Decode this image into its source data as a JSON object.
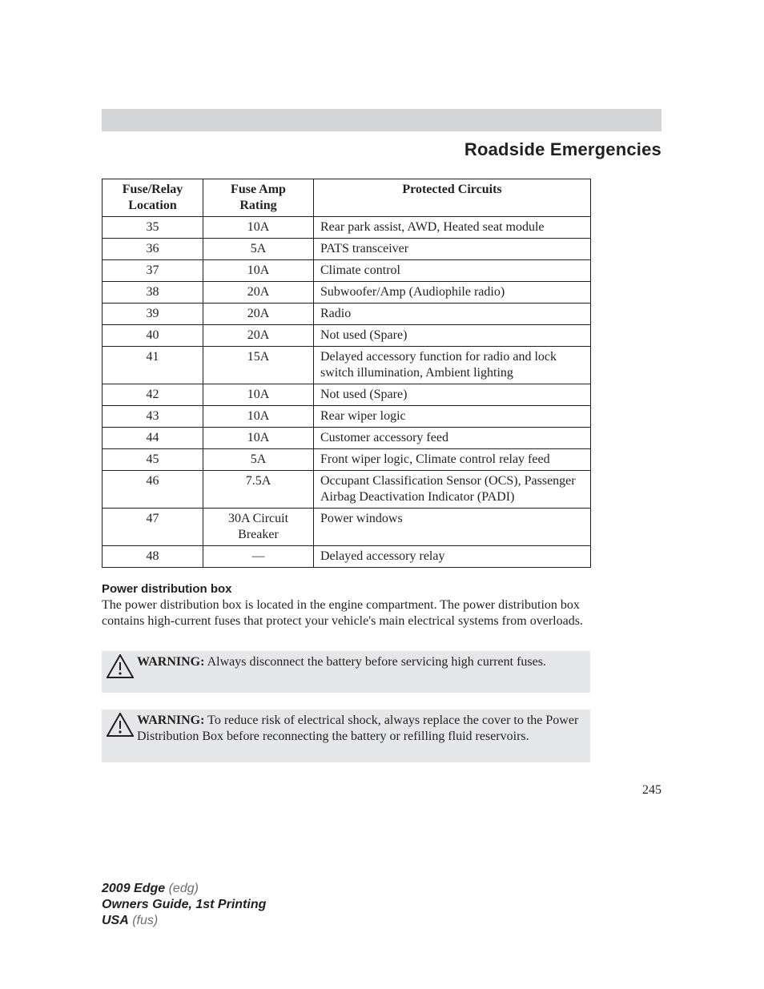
{
  "header": {
    "section_title": "Roadside Emergencies"
  },
  "table": {
    "columns": [
      "Fuse/Relay\nLocation",
      "Fuse Amp\nRating",
      "Protected Circuits"
    ],
    "rows": [
      [
        "35",
        "10A",
        "Rear park assist, AWD, Heated seat module"
      ],
      [
        "36",
        "5A",
        "PATS transceiver"
      ],
      [
        "37",
        "10A",
        "Climate control"
      ],
      [
        "38",
        "20A",
        "Subwoofer/Amp (Audiophile radio)"
      ],
      [
        "39",
        "20A",
        "Radio"
      ],
      [
        "40",
        "20A",
        "Not used (Spare)"
      ],
      [
        "41",
        "15A",
        "Delayed accessory function for radio and lock switch illumination, Ambient lighting"
      ],
      [
        "42",
        "10A",
        "Not used (Spare)"
      ],
      [
        "43",
        "10A",
        "Rear wiper logic"
      ],
      [
        "44",
        "10A",
        "Customer accessory feed"
      ],
      [
        "45",
        "5A",
        "Front wiper logic, Climate control relay feed"
      ],
      [
        "46",
        "7.5A",
        "Occupant Classification Sensor (OCS), Passenger Airbag Deactivation Indicator (PADI)"
      ],
      [
        "47",
        "30A Circuit Breaker",
        "Power windows"
      ],
      [
        "48",
        "—",
        "Delayed accessory relay"
      ]
    ]
  },
  "body": {
    "subheading": "Power distribution box",
    "paragraph": "The power distribution box is located in the engine compartment. The power distribution box contains high-current fuses that protect your vehicle's main electrical systems from overloads.",
    "warning1_label": "WARNING:",
    "warning1_text": " Always disconnect the battery before servicing high current fuses.",
    "warning2_label": "WARNING:",
    "warning2_text": " To reduce risk of electrical shock, always replace the cover to the Power Distribution Box before reconnecting the battery or refilling fluid reservoirs."
  },
  "page_number": "245",
  "footer": {
    "line1_bold": "2009 Edge",
    "line1_ital": " (edg)",
    "line2_bold": "Owners Guide, 1st Printing",
    "line3_bold": "USA",
    "line3_ital": " (fus)"
  },
  "style": {
    "topbar_color": "#d3d4d6",
    "warn_bg": "#e6e7e8",
    "text_color": "#231f20",
    "footer_gray": "#6d6e71",
    "icon_stroke": "#231f20",
    "icon_fill": "#ffffff"
  }
}
